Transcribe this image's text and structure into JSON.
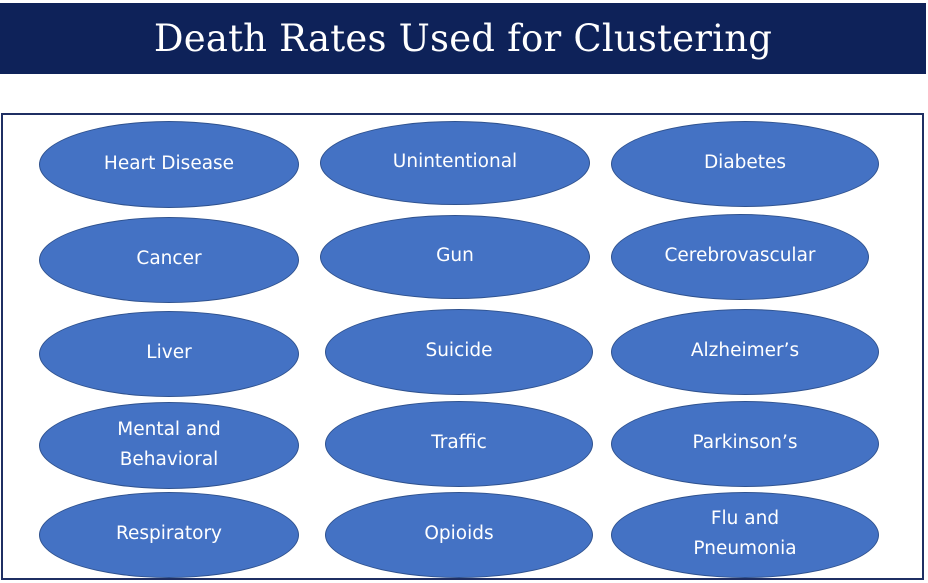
{
  "title": "Death Rates Used for Clustering",
  "colors": {
    "title_bar": "#0e2259",
    "panel_border": "#1f2f63",
    "oval_fill": "#4472c4",
    "oval_border": "#2f528f",
    "label_text": "#ffffff"
  },
  "categories": {
    "col1": [
      "Heart Disease",
      "Cancer",
      "Liver",
      "Mental and Behavioral",
      "Respiratory"
    ],
    "col2": [
      "Unintentional",
      "Gun",
      "Suicide",
      "Traffic",
      "Opioids"
    ],
    "col3": [
      "Diabetes",
      "Cerebrovascular",
      "Alzheimer’s",
      "Parkinson’s",
      "Flu and Pneumonia"
    ]
  }
}
